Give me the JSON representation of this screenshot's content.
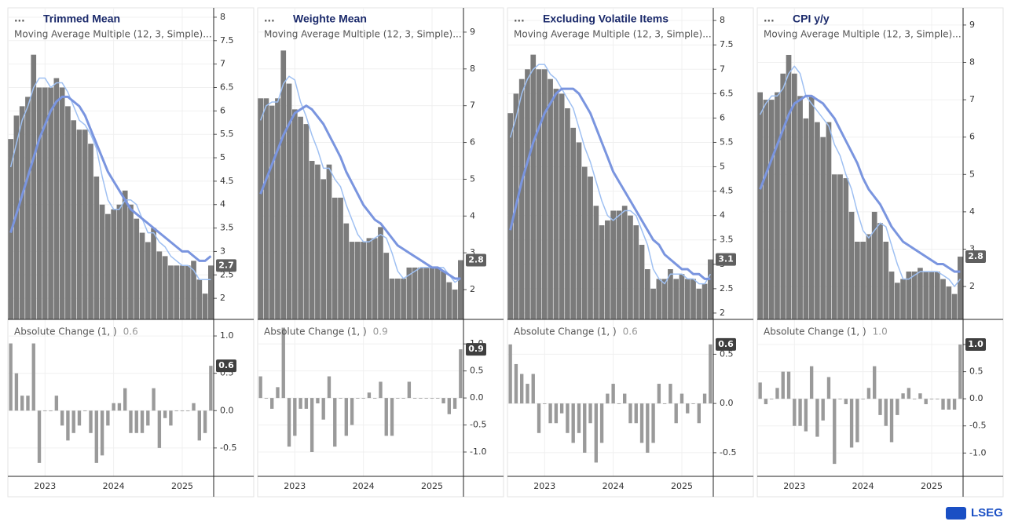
{
  "chart_data": [
    {
      "type": "bar",
      "menu": "...",
      "title": "Trimmed Mean",
      "subtitle": "Moving Average Multiple (12, 3, Simple)...",
      "categories": [
        null,
        null,
        null,
        null,
        null,
        null,
        "2023",
        null,
        null,
        null,
        null,
        null,
        null,
        null,
        null,
        null,
        null,
        null,
        "2024",
        null,
        null,
        null,
        null,
        null,
        null,
        null,
        null,
        null,
        null,
        null,
        "2025",
        null,
        null,
        null,
        null,
        null
      ],
      "series": [
        {
          "type": "bar",
          "color": "#7b7b7b",
          "values": [
            5.4,
            5.9,
            6.1,
            6.3,
            7.2,
            6.5,
            6.5,
            6.5,
            6.7,
            6.5,
            6.1,
            5.8,
            5.6,
            5.6,
            5.3,
            4.6,
            4.0,
            3.8,
            3.9,
            4.0,
            4.3,
            4.0,
            3.7,
            3.4,
            3.2,
            3.5,
            3.0,
            2.9,
            2.7,
            2.7,
            2.7,
            2.7,
            2.8,
            2.4,
            2.1,
            2.7
          ]
        },
        {
          "type": "line",
          "color": "#9fc0f2",
          "width": 1.5,
          "values": [
            4.8,
            5.3,
            5.8,
            6.1,
            6.5,
            6.7,
            6.7,
            6.5,
            6.6,
            6.6,
            6.4,
            6.1,
            5.8,
            5.7,
            5.5,
            5.2,
            4.6,
            4.1,
            3.9,
            3.9,
            4.1,
            4.1,
            4.0,
            3.7,
            3.4,
            3.4,
            3.2,
            3.1,
            2.9,
            2.8,
            2.7,
            2.7,
            2.6,
            2.4,
            2.4,
            2.4
          ]
        },
        {
          "type": "line",
          "color": "#7a95df",
          "width": 3,
          "values": [
            3.4,
            3.8,
            4.2,
            4.6,
            5.0,
            5.4,
            5.7,
            6.0,
            6.2,
            6.3,
            6.3,
            6.2,
            6.1,
            5.9,
            5.6,
            5.3,
            5.0,
            4.7,
            4.5,
            4.3,
            4.1,
            3.9,
            3.8,
            3.7,
            3.6,
            3.5,
            3.4,
            3.3,
            3.2,
            3.1,
            3.0,
            3.0,
            2.9,
            2.8,
            2.8,
            2.9
          ]
        }
      ],
      "ylim": [
        1.55,
        8.2
      ],
      "yticks": [
        2,
        2.5,
        3,
        3.5,
        4,
        4.5,
        5,
        5.5,
        6,
        6.5,
        7,
        7.5,
        8
      ],
      "grid": true,
      "change": {
        "type": "bar",
        "title": "Absolute Change (1, )",
        "color": "#9a9a9a",
        "last_label": "0.6",
        "values": [
          0.9,
          0.5,
          0.2,
          0.2,
          0.9,
          -0.7,
          0,
          0,
          0.2,
          -0.2,
          -0.4,
          -0.3,
          -0.2,
          0,
          -0.3,
          -0.7,
          -0.6,
          -0.2,
          0.1,
          0.1,
          0.3,
          -0.3,
          -0.3,
          -0.3,
          -0.2,
          0.3,
          -0.5,
          -0.1,
          -0.2,
          0,
          0,
          0,
          0.1,
          -0.4,
          -0.3,
          0.6
        ],
        "ylim": [
          -0.88,
          1.19
        ],
        "yticks": [
          -0.5,
          {
            "value": 0,
            "label": "0.0"
          },
          0.5,
          {
            "value": 1,
            "label": "1.0"
          }
        ]
      }
    },
    {
      "type": "bar",
      "menu": "...",
      "title": "Weighte Mean",
      "subtitle": "Moving Average Multiple (12, 3, Simple)...",
      "categories": [
        null,
        null,
        null,
        null,
        null,
        null,
        "2023",
        null,
        null,
        null,
        null,
        null,
        null,
        null,
        null,
        null,
        null,
        null,
        "2024",
        null,
        null,
        null,
        null,
        null,
        null,
        null,
        null,
        null,
        null,
        null,
        "2025",
        null,
        null,
        null,
        null,
        null
      ],
      "series": [
        {
          "type": "bar",
          "color": "#7b7b7b",
          "values": [
            7.2,
            7.2,
            7.0,
            7.2,
            8.5,
            7.6,
            6.9,
            6.7,
            6.5,
            5.5,
            5.4,
            5.0,
            5.4,
            4.5,
            4.5,
            3.8,
            3.3,
            3.3,
            3.3,
            3.4,
            3.4,
            3.7,
            3.0,
            2.3,
            2.3,
            2.3,
            2.6,
            2.6,
            2.6,
            2.6,
            2.6,
            2.6,
            2.5,
            2.2,
            2.0,
            2.8
          ]
        },
        {
          "type": "line",
          "color": "#9fc0f2",
          "width": 1.5,
          "values": [
            6.6,
            7.0,
            7.1,
            7.1,
            7.6,
            7.8,
            7.7,
            7.1,
            6.7,
            6.2,
            5.8,
            5.3,
            5.3,
            5.0,
            4.8,
            4.3,
            3.9,
            3.5,
            3.3,
            3.3,
            3.4,
            3.5,
            3.4,
            3.0,
            2.5,
            2.3,
            2.4,
            2.5,
            2.6,
            2.6,
            2.6,
            2.6,
            2.6,
            2.4,
            2.2,
            2.3
          ]
        },
        {
          "type": "line",
          "color": "#7a95df",
          "width": 3,
          "values": [
            4.6,
            5.0,
            5.4,
            5.8,
            6.2,
            6.5,
            6.8,
            6.9,
            7.0,
            6.9,
            6.7,
            6.5,
            6.2,
            5.9,
            5.6,
            5.2,
            4.9,
            4.6,
            4.3,
            4.1,
            3.9,
            3.8,
            3.6,
            3.4,
            3.2,
            3.1,
            3.0,
            2.9,
            2.8,
            2.7,
            2.6,
            2.6,
            2.5,
            2.4,
            2.3,
            2.3
          ]
        }
      ],
      "ylim": [
        1.19,
        9.66
      ],
      "yticks": [
        2,
        3,
        4,
        5,
        6,
        7,
        8,
        9
      ],
      "grid": true,
      "change": {
        "type": "bar",
        "title": "Absolute Change (1, )",
        "color": "#9a9a9a",
        "last_label": "0.9",
        "values": [
          0.4,
          0,
          -0.2,
          0.2,
          1.3,
          -0.9,
          -0.7,
          -0.2,
          -0.2,
          -1.0,
          -0.1,
          -0.4,
          0.4,
          -0.9,
          0,
          -0.7,
          -0.5,
          0,
          0,
          0.1,
          0,
          0.3,
          -0.7,
          -0.7,
          0,
          0,
          0.3,
          0,
          0,
          0,
          0,
          0,
          -0.1,
          -0.3,
          -0.2,
          0.9
        ],
        "ylim": [
          -1.45,
          1.41
        ],
        "yticks": [
          {
            "value": -1,
            "label": "-1.0"
          },
          -0.5,
          {
            "value": 0,
            "label": "0.0"
          },
          0.5,
          {
            "value": 1,
            "label": "1.0"
          }
        ]
      }
    },
    {
      "type": "bar",
      "menu": "...",
      "title": "Excluding Volatile Items",
      "subtitle": "Moving Average Multiple (12, 3, Simple)...",
      "categories": [
        null,
        null,
        null,
        null,
        null,
        null,
        "2023",
        null,
        null,
        null,
        null,
        null,
        null,
        null,
        null,
        null,
        null,
        null,
        "2024",
        null,
        null,
        null,
        null,
        null,
        null,
        null,
        null,
        null,
        null,
        null,
        "2025",
        null,
        null,
        null,
        null,
        null
      ],
      "series": [
        {
          "type": "bar",
          "color": "#7b7b7b",
          "values": [
            6.1,
            6.5,
            6.8,
            7.0,
            7.3,
            7.0,
            7.0,
            6.8,
            6.6,
            6.5,
            6.2,
            5.8,
            5.5,
            5.0,
            4.8,
            4.2,
            3.8,
            3.9,
            4.1,
            4.1,
            4.2,
            4.0,
            3.8,
            3.4,
            2.9,
            2.5,
            2.7,
            2.7,
            2.9,
            2.7,
            2.8,
            2.7,
            2.7,
            2.5,
            2.6,
            3.1
          ]
        },
        {
          "type": "line",
          "color": "#9fc0f2",
          "width": 1.5,
          "values": [
            5.6,
            6.0,
            6.5,
            6.8,
            7.0,
            7.1,
            7.1,
            6.9,
            6.8,
            6.6,
            6.4,
            6.2,
            5.8,
            5.4,
            5.1,
            4.7,
            4.3,
            4.0,
            3.9,
            4.0,
            4.1,
            4.1,
            4.0,
            3.7,
            3.4,
            2.9,
            2.7,
            2.6,
            2.8,
            2.8,
            2.8,
            2.7,
            2.7,
            2.6,
            2.6,
            2.8
          ]
        },
        {
          "type": "line",
          "color": "#7a95df",
          "width": 3,
          "values": [
            3.7,
            4.2,
            4.7,
            5.1,
            5.5,
            5.8,
            6.1,
            6.3,
            6.5,
            6.6,
            6.6,
            6.6,
            6.5,
            6.3,
            6.1,
            5.8,
            5.5,
            5.2,
            4.9,
            4.7,
            4.5,
            4.3,
            4.1,
            3.9,
            3.7,
            3.5,
            3.4,
            3.2,
            3.1,
            3.0,
            2.9,
            2.9,
            2.8,
            2.8,
            2.7,
            2.7
          ]
        }
      ],
      "ylim": [
        1.87,
        8.26
      ],
      "yticks": [
        2,
        2.5,
        3,
        3.5,
        4,
        4.5,
        5,
        5.5,
        6,
        6.5,
        7,
        7.5,
        8
      ],
      "grid": true,
      "change": {
        "type": "bar",
        "title": "Absolute Change (1, )",
        "color": "#9a9a9a",
        "last_label": "0.6",
        "values": [
          0.6,
          0.4,
          0.3,
          0.2,
          0.3,
          -0.3,
          0,
          -0.2,
          -0.2,
          -0.1,
          -0.3,
          -0.4,
          -0.3,
          -0.5,
          -0.2,
          -0.6,
          -0.4,
          0.1,
          0.2,
          0,
          0.1,
          -0.2,
          -0.2,
          -0.4,
          -0.5,
          -0.4,
          0.2,
          0,
          0.2,
          -0.2,
          0.1,
          -0.1,
          0,
          -0.2,
          0.1,
          0.6
        ],
        "ylim": [
          -0.74,
          0.83
        ],
        "yticks": [
          -0.5,
          {
            "value": 0,
            "label": "0.0"
          },
          0.5
        ]
      }
    },
    {
      "type": "bar",
      "menu": "...",
      "title": "CPI y/y",
      "subtitle": "Moving Average Multiple (12, 3, Simple)...",
      "categories": [
        null,
        null,
        null,
        null,
        null,
        null,
        "2023",
        null,
        null,
        null,
        null,
        null,
        null,
        null,
        null,
        null,
        null,
        null,
        "2024",
        null,
        null,
        null,
        null,
        null,
        null,
        null,
        null,
        null,
        null,
        null,
        "2025",
        null,
        null,
        null,
        null,
        null
      ],
      "series": [
        {
          "type": "bar",
          "color": "#7b7b7b",
          "values": [
            7.2,
            7.0,
            7.0,
            7.2,
            7.7,
            8.2,
            7.7,
            7.1,
            6.5,
            7.1,
            6.4,
            6.0,
            6.4,
            5.0,
            5.0,
            4.9,
            4.0,
            3.2,
            3.2,
            3.4,
            4.0,
            3.7,
            3.2,
            2.4,
            2.1,
            2.2,
            2.4,
            2.4,
            2.5,
            2.4,
            2.4,
            2.4,
            2.2,
            2.0,
            1.8,
            2.8
          ]
        },
        {
          "type": "line",
          "color": "#9fc0f2",
          "width": 1.5,
          "values": [
            6.6,
            6.9,
            7.1,
            7.1,
            7.3,
            7.7,
            7.9,
            7.7,
            7.1,
            6.9,
            6.7,
            6.5,
            6.3,
            5.8,
            5.5,
            5.0,
            4.6,
            4.0,
            3.5,
            3.3,
            3.5,
            3.7,
            3.6,
            3.1,
            2.6,
            2.2,
            2.2,
            2.3,
            2.4,
            2.4,
            2.4,
            2.4,
            2.3,
            2.2,
            2.0,
            2.2
          ]
        },
        {
          "type": "line",
          "color": "#7a95df",
          "width": 3,
          "values": [
            4.6,
            5.0,
            5.4,
            5.8,
            6.2,
            6.6,
            6.9,
            7.0,
            7.1,
            7.1,
            7.0,
            6.9,
            6.7,
            6.5,
            6.2,
            5.9,
            5.6,
            5.3,
            4.9,
            4.6,
            4.4,
            4.2,
            3.9,
            3.6,
            3.4,
            3.2,
            3.1,
            3.0,
            2.9,
            2.8,
            2.7,
            2.6,
            2.6,
            2.5,
            2.4,
            2.4
          ]
        }
      ],
      "ylim": [
        1.12,
        9.46
      ],
      "yticks": [
        2,
        3,
        4,
        5,
        6,
        7,
        8,
        9
      ],
      "grid": true,
      "change": {
        "type": "bar",
        "title": "Absolute Change (1, )",
        "color": "#9a9a9a",
        "last_label": "1.0",
        "values": [
          0.3,
          -0.1,
          0,
          0.2,
          0.5,
          0.5,
          -0.5,
          -0.5,
          -0.6,
          0.6,
          -0.7,
          -0.4,
          0.4,
          -1.2,
          0,
          -0.1,
          -0.9,
          -0.8,
          0,
          0.2,
          0.6,
          -0.3,
          -0.5,
          -0.8,
          -0.3,
          0.1,
          0.2,
          0,
          0.1,
          -0.1,
          0,
          0,
          -0.2,
          -0.2,
          -0.2,
          1.0
        ],
        "ylim": [
          -1.43,
          1.42
        ],
        "yticks": [
          {
            "value": -1,
            "label": "-1.0"
          },
          -0.5,
          {
            "value": 0,
            "label": "0.0"
          },
          0.5,
          {
            "value": 1,
            "label": "1.0"
          }
        ]
      }
    }
  ],
  "logo": "LSEG"
}
